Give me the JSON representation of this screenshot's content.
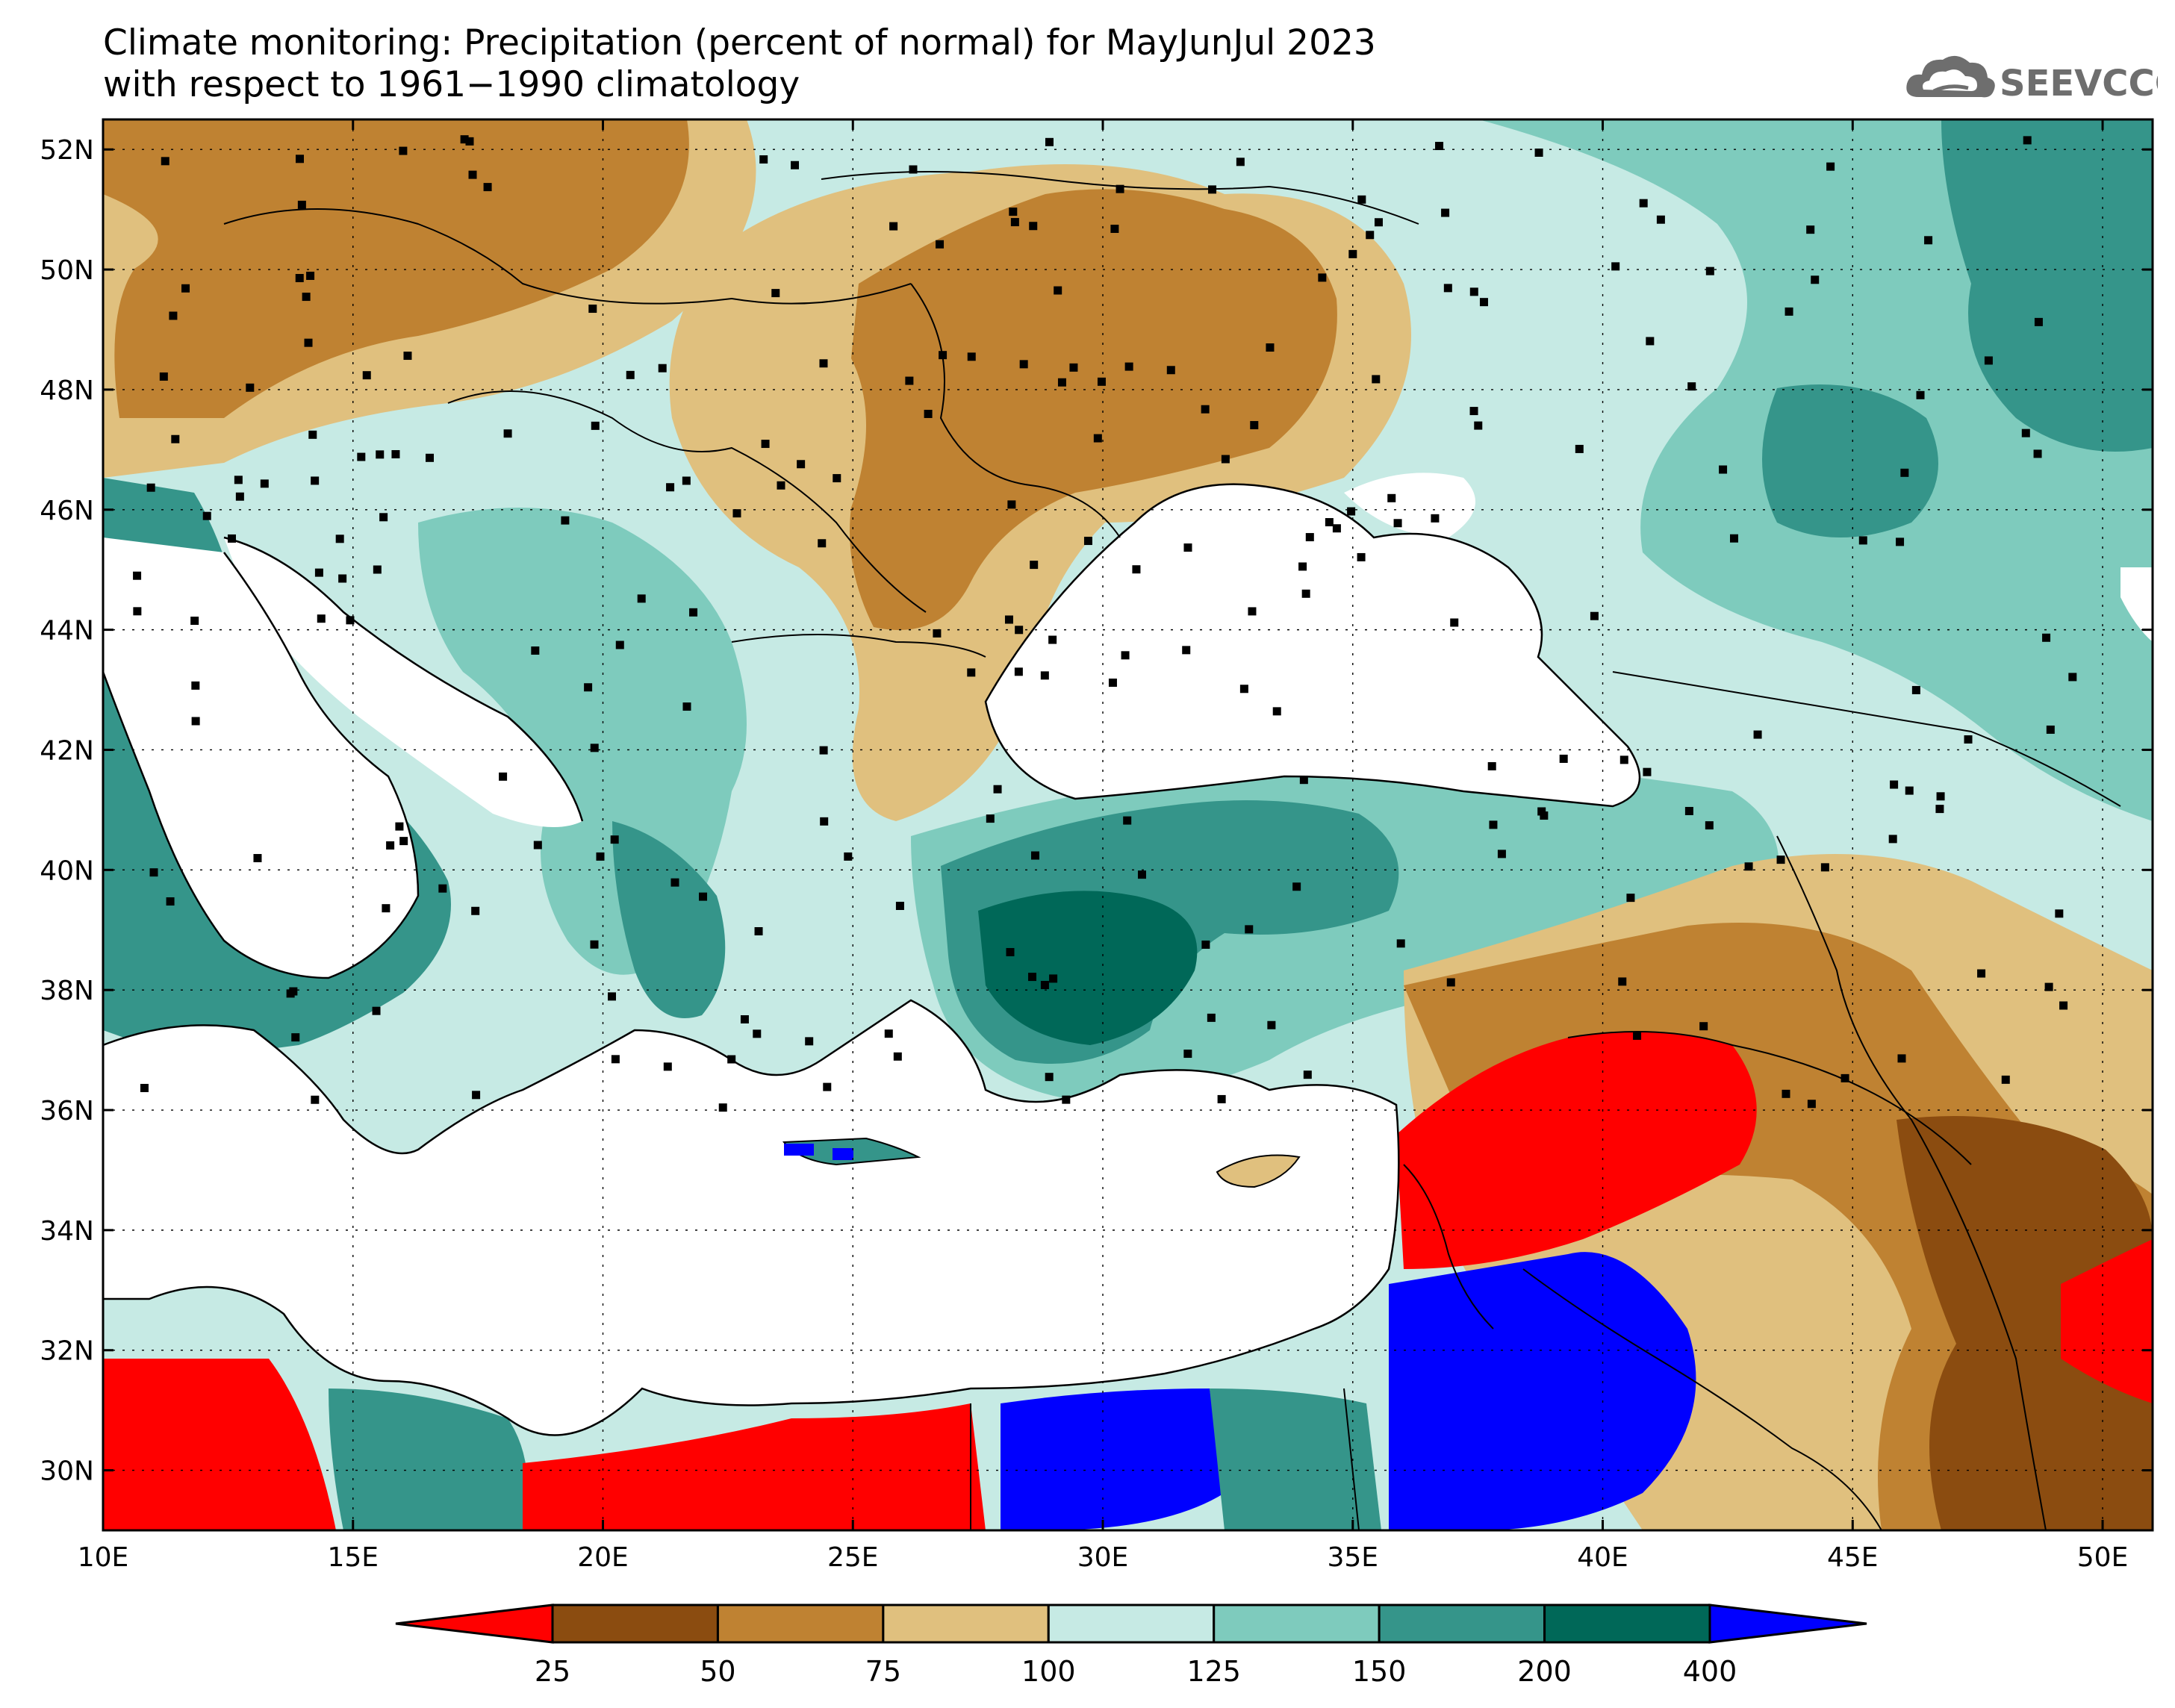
{
  "title": {
    "line1": "Climate monitoring: Precipitation (percent of normal) for MayJunJul 2023",
    "line2": "with respect to 1961−1990 climatology"
  },
  "logo": {
    "text": "SEEVCCC",
    "icon": "cloud-icon",
    "color": "#6e6e6e"
  },
  "map": {
    "lon_range": [
      10,
      51
    ],
    "lat_range": [
      29,
      52.5
    ],
    "lon_ticks": [
      "10E",
      "15E",
      "20E",
      "25E",
      "30E",
      "35E",
      "40E",
      "45E",
      "50E"
    ],
    "lat_ticks": [
      "30N",
      "32N",
      "34N",
      "36N",
      "38N",
      "40N",
      "42N",
      "44N",
      "46N",
      "48N",
      "50N",
      "52N"
    ],
    "grid": "dotted"
  },
  "colorbar": {
    "labels": [
      "25",
      "50",
      "75",
      "100",
      "125",
      "150",
      "200",
      "400"
    ],
    "colors": [
      "#ff0000",
      "#8b4c10",
      "#bf8232",
      "#e0c07e",
      "#c6eae4",
      "#7ecbbd",
      "#35958a",
      "#006858",
      "#0000ff"
    ]
  }
}
